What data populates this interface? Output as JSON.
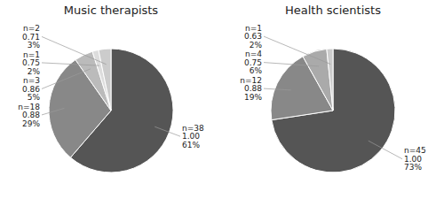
{
  "chart_data": [
    {
      "type": "pie",
      "title": "Music therapists",
      "values": [
        38,
        18,
        3,
        1,
        2
      ],
      "value_labels": [
        "n=38\n1.00\n61%",
        "n=18\n0.88\n29%",
        "n=3\n0.86\n5%",
        "n=1\n0.75\n2%",
        "n=2\n0.71\n3%"
      ],
      "colors": [
        "#555555",
        "#888888",
        "#bbbbbb",
        "#dddddd",
        "#cccccc"
      ]
    },
    {
      "type": "pie",
      "title": "Health scientists",
      "values": [
        45,
        12,
        4,
        1
      ],
      "value_labels": [
        "n=45\n1.00\n73%",
        "n=12\n0.88\n19%",
        "n=4\n0.75\n6%",
        "n=1\n0.63\n2%"
      ],
      "colors": [
        "#555555",
        "#888888",
        "#aaaaaa",
        "#cccccc"
      ]
    }
  ]
}
